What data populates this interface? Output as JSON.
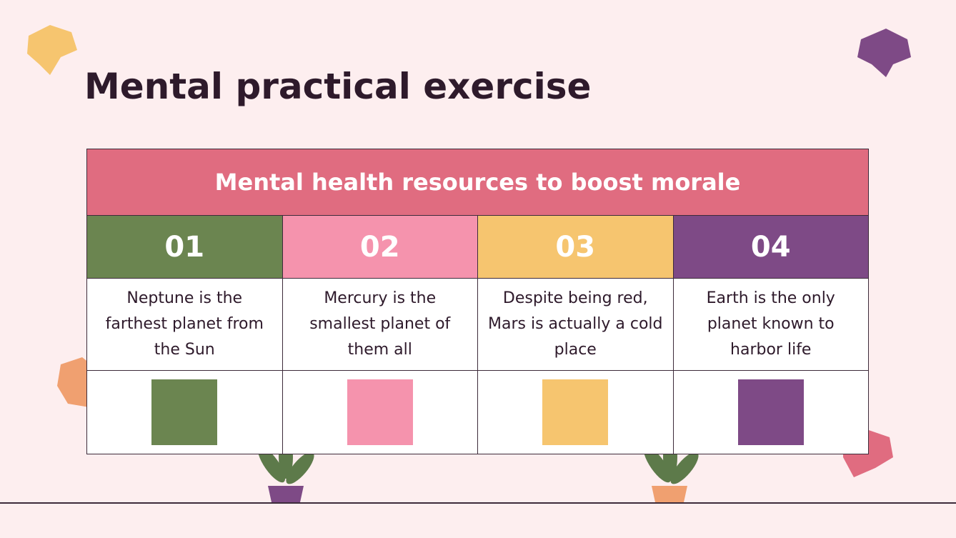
{
  "header": {
    "title": "Mental practical exercise"
  },
  "table": {
    "heading": "Mental health resources to boost morale",
    "columns": [
      {
        "number": "01",
        "text": "Neptune is the farthest planet from the Sun"
      },
      {
        "number": "02",
        "text": "Mercury is the smallest planet of them all"
      },
      {
        "number": "03",
        "text": "Despite being red, Mars is actually a cold place"
      },
      {
        "number": "04",
        "text": "Earth is the only planet known to harbor life"
      }
    ]
  }
}
